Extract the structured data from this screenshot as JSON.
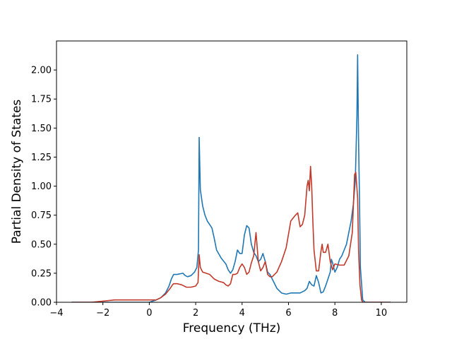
{
  "chart_data": {
    "type": "line",
    "title": "",
    "xlabel": "Frequency (THz)",
    "ylabel": "Partial Density of States",
    "xlim": [
      -4.0,
      11.1
    ],
    "ylim": [
      0,
      2.25
    ],
    "xticks": [
      -4,
      -2,
      0,
      2,
      4,
      6,
      8,
      10
    ],
    "xtick_labels": [
      "−4",
      "−2",
      "0",
      "2",
      "4",
      "6",
      "8",
      "10"
    ],
    "yticks": [
      0.0,
      0.25,
      0.5,
      0.75,
      1.0,
      1.25,
      1.5,
      1.75,
      2.0
    ],
    "ytick_labels": [
      "0.00",
      "0.25",
      "0.50",
      "0.75",
      "1.00",
      "1.25",
      "1.50",
      "1.75",
      "2.00"
    ],
    "grid": false,
    "legend": "none",
    "series": [
      {
        "color": "#1f77b4",
        "x": [
          -3.35,
          -2.5,
          -2.0,
          -1.0,
          0.0,
          0.3,
          0.5,
          0.7,
          0.85,
          0.95,
          1.05,
          1.2,
          1.45,
          1.55,
          1.65,
          1.8,
          1.95,
          2.05,
          2.12,
          2.15,
          2.2,
          2.3,
          2.4,
          2.5,
          2.6,
          2.7,
          2.8,
          2.9,
          3.1,
          3.3,
          3.4,
          3.5,
          3.6,
          3.7,
          3.8,
          3.9,
          4.0,
          4.1,
          4.2,
          4.3,
          4.4,
          4.5,
          4.6,
          4.7,
          4.8,
          4.9,
          5.0,
          5.1,
          5.2,
          5.3,
          5.5,
          5.7,
          5.9,
          6.1,
          6.3,
          6.5,
          6.7,
          6.8,
          6.9,
          7.0,
          7.1,
          7.2,
          7.3,
          7.4,
          7.5,
          7.6,
          7.7,
          7.8,
          7.85,
          7.9,
          8.0,
          8.1,
          8.2,
          8.3,
          8.4,
          8.5,
          8.6,
          8.7,
          8.8,
          8.88,
          8.95,
          8.98,
          9.02,
          9.06,
          9.1,
          9.2,
          9.3,
          9.5,
          10.0,
          10.4
        ],
        "y": [
          0.0,
          0.0,
          0.0,
          0.0,
          0.0,
          0.02,
          0.04,
          0.08,
          0.14,
          0.2,
          0.24,
          0.24,
          0.25,
          0.23,
          0.22,
          0.23,
          0.26,
          0.3,
          0.45,
          1.42,
          0.97,
          0.83,
          0.75,
          0.7,
          0.67,
          0.64,
          0.55,
          0.45,
          0.38,
          0.33,
          0.28,
          0.25,
          0.28,
          0.35,
          0.45,
          0.42,
          0.42,
          0.58,
          0.66,
          0.64,
          0.5,
          0.43,
          0.4,
          0.35,
          0.37,
          0.42,
          0.35,
          0.26,
          0.24,
          0.2,
          0.12,
          0.08,
          0.07,
          0.08,
          0.08,
          0.08,
          0.1,
          0.12,
          0.18,
          0.15,
          0.14,
          0.23,
          0.17,
          0.08,
          0.09,
          0.14,
          0.2,
          0.26,
          0.37,
          0.34,
          0.26,
          0.3,
          0.37,
          0.4,
          0.45,
          0.5,
          0.6,
          0.7,
          0.85,
          1.05,
          1.6,
          2.13,
          1.4,
          0.9,
          0.3,
          0.02,
          0.0,
          0.0,
          0.0,
          0.0
        ]
      },
      {
        "color": "#c0392b",
        "x": [
          -3.35,
          -2.5,
          -2.0,
          -1.5,
          -1.0,
          -0.5,
          0.0,
          0.3,
          0.5,
          0.7,
          0.9,
          1.0,
          1.05,
          1.2,
          1.4,
          1.6,
          1.8,
          2.0,
          2.1,
          2.15,
          2.2,
          2.3,
          2.45,
          2.6,
          2.8,
          3.0,
          3.2,
          3.3,
          3.4,
          3.5,
          3.6,
          3.7,
          3.8,
          3.9,
          4.0,
          4.1,
          4.2,
          4.3,
          4.4,
          4.5,
          4.6,
          4.7,
          4.8,
          4.9,
          5.0,
          5.1,
          5.2,
          5.3,
          5.5,
          5.7,
          5.9,
          6.1,
          6.3,
          6.4,
          6.5,
          6.6,
          6.7,
          6.8,
          6.85,
          6.9,
          6.95,
          7.0,
          7.05,
          7.1,
          7.2,
          7.3,
          7.4,
          7.45,
          7.5,
          7.6,
          7.7,
          7.8,
          7.9,
          8.0,
          8.2,
          8.4,
          8.6,
          8.75,
          8.85,
          8.9,
          8.98,
          9.02,
          9.08,
          9.15,
          9.2,
          9.3,
          9.6,
          10.0,
          10.4
        ],
        "y": [
          0.0,
          0.0,
          0.01,
          0.02,
          0.02,
          0.02,
          0.02,
          0.02,
          0.04,
          0.07,
          0.12,
          0.15,
          0.16,
          0.16,
          0.15,
          0.13,
          0.13,
          0.14,
          0.17,
          0.41,
          0.3,
          0.26,
          0.25,
          0.24,
          0.2,
          0.18,
          0.17,
          0.15,
          0.14,
          0.16,
          0.24,
          0.24,
          0.25,
          0.3,
          0.33,
          0.3,
          0.24,
          0.26,
          0.34,
          0.4,
          0.6,
          0.35,
          0.27,
          0.3,
          0.35,
          0.24,
          0.22,
          0.22,
          0.26,
          0.35,
          0.47,
          0.7,
          0.75,
          0.77,
          0.65,
          0.67,
          0.75,
          1.0,
          1.05,
          0.96,
          1.17,
          1.0,
          0.7,
          0.45,
          0.27,
          0.27,
          0.44,
          0.5,
          0.43,
          0.43,
          0.5,
          0.35,
          0.28,
          0.33,
          0.32,
          0.32,
          0.4,
          0.6,
          1.1,
          1.12,
          0.9,
          0.45,
          0.15,
          0.02,
          0.0,
          0.0,
          0.0,
          0.0,
          0.0
        ]
      }
    ]
  }
}
